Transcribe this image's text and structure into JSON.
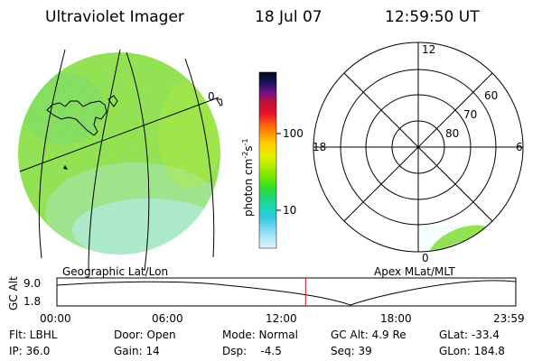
{
  "header": {
    "title": "Ultraviolet Imager",
    "date": "18 Jul 07",
    "time": "12:59:50 UT"
  },
  "geo_panel": {
    "label": "Geographic Lat/Lon",
    "lon_label": "0"
  },
  "colorbar": {
    "label": "photon cm",
    "label_sup1": "-2",
    "label_s": "s",
    "label_sup2": "-1",
    "ticks": [
      "100",
      "10"
    ],
    "colors": [
      "#0a0a1e",
      "#141458",
      "#7a0f8a",
      "#c8102e",
      "#e8102e",
      "#ff5a10",
      "#ff9a00",
      "#ffd000",
      "#e8ee00",
      "#b8ee00",
      "#7ae800",
      "#38e020",
      "#20d870",
      "#18d8b0",
      "#30c8e0",
      "#70d8f0",
      "#b0e8f8",
      "#e0f4fc"
    ]
  },
  "polar_panel": {
    "label": "Apex MLat/MLT",
    "mlt_labels": {
      "top": "12",
      "left": "18",
      "right": "6",
      "bottom": "0"
    },
    "lat_labels": [
      "60",
      "70",
      "80"
    ]
  },
  "altitude_plot": {
    "ylabel": "GC Alt",
    "yticks": [
      "9.0",
      "1.8"
    ],
    "xticks": [
      "00:00",
      "06:00",
      "12:00",
      "18:00",
      "23:59"
    ],
    "current_time_fraction": 0.542
  },
  "info": {
    "row1": [
      "Flt: LBHL",
      "Door: Open",
      "Mode: Normal",
      "GC Alt: 4.9 Re",
      "GLat: -33.4"
    ],
    "row2": [
      "IP: 36.0",
      "Gain: 14",
      "Dsp:    -4.5",
      "Seq: 39",
      "GLon: 184.8"
    ]
  }
}
